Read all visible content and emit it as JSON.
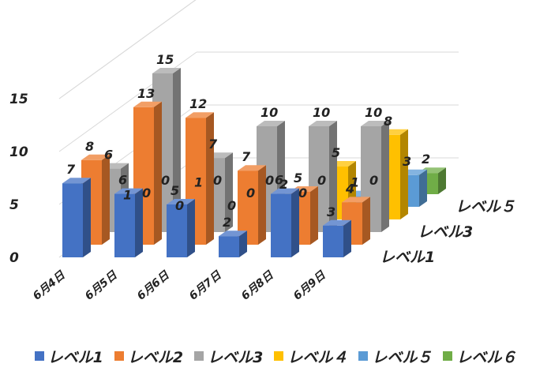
{
  "chart_data": {
    "type": "bar",
    "subtype": "3d-column",
    "categories": [
      "6月4日",
      "6月5日",
      "6月6日",
      "6月7日",
      "6月8日",
      "6月9日"
    ],
    "series": [
      {
        "name": "レベル1",
        "color": "#4472C4",
        "values": [
          7,
          6,
          5,
          2,
          6,
          3
        ]
      },
      {
        "name": "レベル2",
        "color": "#ED7D31",
        "values": [
          8,
          13,
          12,
          7,
          5,
          4
        ]
      },
      {
        "name": "レベル3",
        "color": "#A5A5A5",
        "values": [
          6,
          15,
          7,
          10,
          10,
          10
        ]
      },
      {
        "name": "レベル４",
        "color": "#FFC000",
        "values": [
          1,
          0,
          0,
          2,
          5,
          8
        ]
      },
      {
        "name": "レベル５",
        "color": "#5B9BD5",
        "values": [
          0,
          1,
          0,
          0,
          1,
          3
        ]
      },
      {
        "name": "レベル６",
        "color": "#70AD47",
        "values": [
          0,
          0,
          0,
          0,
          0,
          2
        ]
      }
    ],
    "ylim": [
      0,
      15
    ],
    "yticks": [
      0,
      5,
      10,
      15
    ],
    "depth_axis_labels": [
      "レベル1",
      "レベル3",
      "レベル５"
    ],
    "grid": true,
    "legend": "bottom",
    "data_labels": true
  }
}
